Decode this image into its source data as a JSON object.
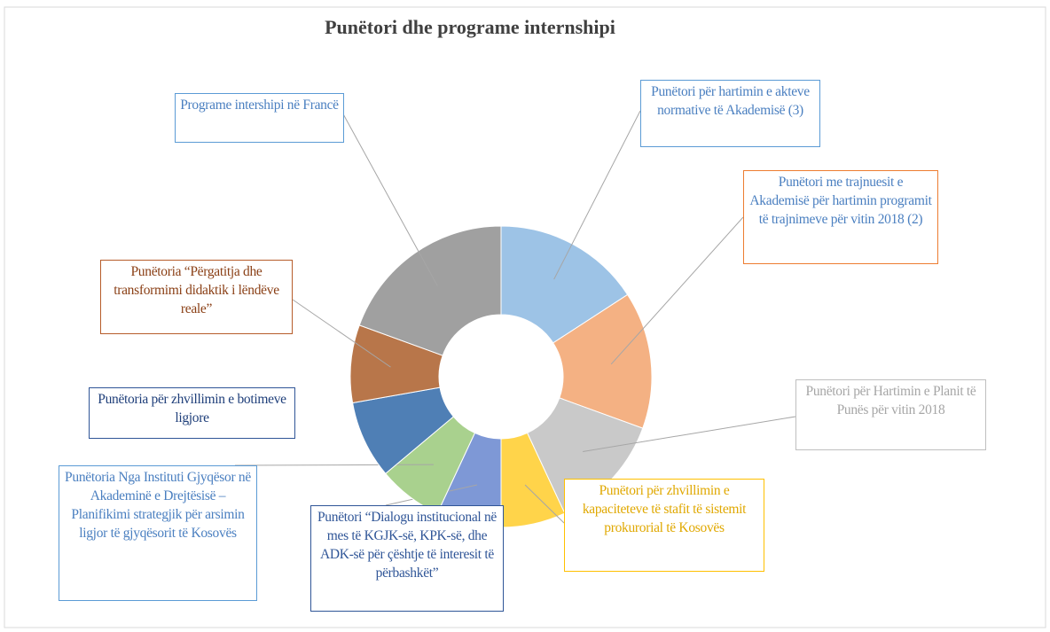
{
  "chart_data": {
    "type": "donut",
    "title": "Punëtori  dhe programe  internshipi",
    "categories": [
      "Punëtori për hartimin e akteve normative të Akademisë (3)",
      "Punëtori me trajnuesit e Akademisë për hartimin programit të trajnimeve për vitin 2018 (2)",
      "Punëtori për Hartimin e Planit të Punës për vitin 2018",
      "Punëtori për zhvillimin e kapaciteteve të stafit të sistemit prokurorial të Kosovës",
      "Punëtori “Dialogu institucional në mes të KGJK-së, KPK-së, dhe ADK-së për çështje të interesit të përbashkët”",
      "Punëtoria Nga Instituti Gjyqësor në Akademinë e Drejtësisë – Planifikimi strategjik për arsimin ligjor të gjyqësorit të Kosovës",
      "Punëtoria për zhvillimin e botimeve ligjore",
      "Punëtoria “Përgatitja dhe transformimi didaktik i lëndëve reale”",
      "Programe intershipi në Francë"
    ],
    "values": [
      57,
      53,
      45,
      25,
      25,
      25,
      30,
      30,
      70
    ],
    "colors": [
      "#9dc3e6",
      "#f4b183",
      "#c9c9c9",
      "#ffd44a",
      "#7e98d6",
      "#a9d18e",
      "#4f7fb5",
      "#b8764a",
      "#a0a0a0"
    ]
  }
}
